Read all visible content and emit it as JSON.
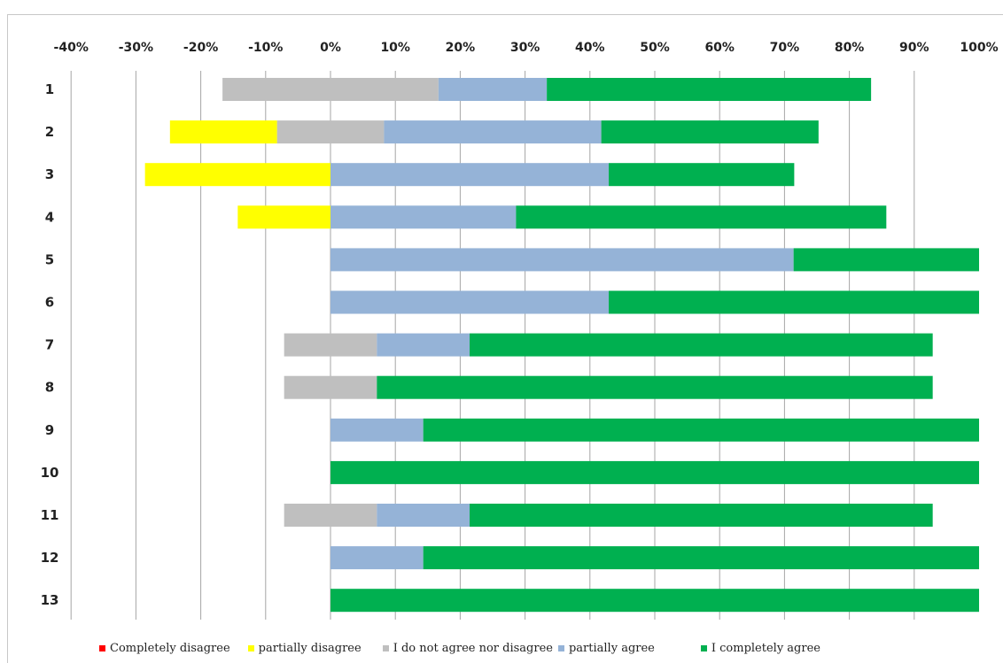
{
  "chart_data": {
    "type": "bar",
    "orientation": "horizontal",
    "stacked": "diverging",
    "categories": [
      "1",
      "2",
      "3",
      "4",
      "5",
      "6",
      "7",
      "8",
      "9",
      "10",
      "11",
      "12",
      "13"
    ],
    "x_ticks": [
      "-40%",
      "-30%",
      "-20%",
      "-10%",
      "0%",
      "10%",
      "20%",
      "30%",
      "40%",
      "50%",
      "60%",
      "70%",
      "80%",
      "90%",
      "100%"
    ],
    "xlim": [
      -40,
      100
    ],
    "grid": "vertical",
    "legend_position": "bottom",
    "series": [
      {
        "name": "Completely disagree",
        "color": "#ff0000",
        "side": "negative",
        "values": [
          0,
          0,
          0,
          0,
          0,
          0,
          0,
          0,
          0,
          0,
          0,
          0,
          0
        ]
      },
      {
        "name": "partially disagree",
        "color": "#ffff00",
        "side": "negative",
        "values": [
          0,
          16.5,
          28.6,
          14.3,
          0,
          0,
          0,
          0,
          0,
          0,
          0,
          0,
          0
        ]
      },
      {
        "name": "I do not agree nor disagree",
        "color": "#bfbfbf",
        "side": "split",
        "values": [
          33.3,
          16.5,
          0,
          0,
          0,
          0,
          14.3,
          14.3,
          0,
          0,
          14.3,
          0,
          0
        ]
      },
      {
        "name": "partially agree",
        "color": "#95b3d7",
        "side": "positive",
        "values": [
          16.7,
          33.5,
          42.9,
          28.6,
          71.4,
          42.9,
          14.3,
          0,
          14.3,
          0,
          14.3,
          14.3,
          0
        ]
      },
      {
        "name": "I completely agree",
        "color": "#00b050",
        "side": "positive",
        "values": [
          50,
          33.5,
          28.6,
          57.1,
          28.6,
          57.1,
          71.4,
          85.7,
          85.7,
          100,
          71.4,
          85.7,
          100
        ]
      }
    ]
  }
}
